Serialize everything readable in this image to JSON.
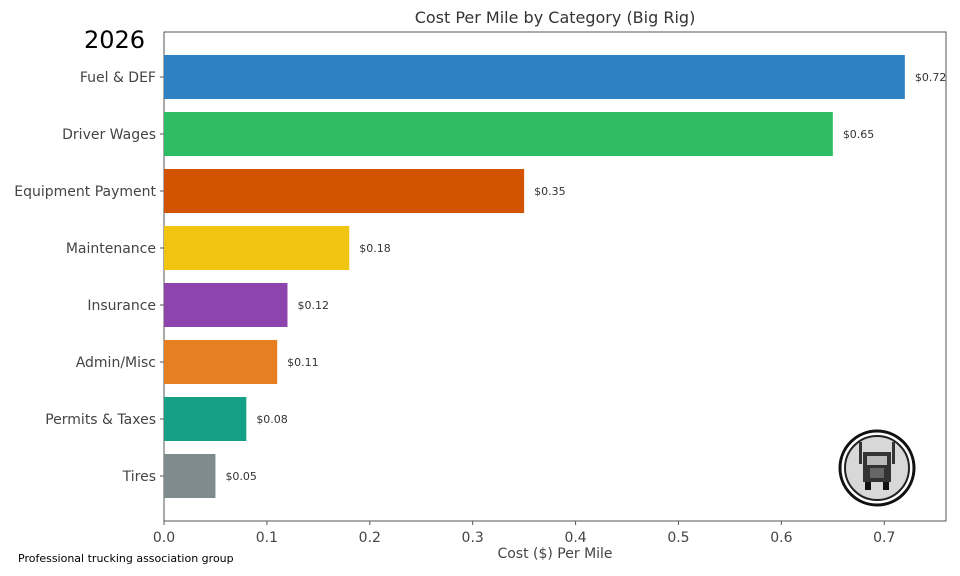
{
  "year_label": "2026",
  "footer": "Professional trucking association group",
  "logo": {
    "name": "truck-seal-logo"
  },
  "chart_data": {
    "type": "bar",
    "orientation": "horizontal",
    "title": "Cost Per Mile by Category (Big Rig)",
    "xlabel": "Cost ($) Per Mile",
    "ylabel": "",
    "xlim": [
      0,
      0.76
    ],
    "xticks": [
      "0.0",
      "0.1",
      "0.2",
      "0.3",
      "0.4",
      "0.5",
      "0.6",
      "0.7"
    ],
    "grid": false,
    "categories": [
      "Fuel & DEF",
      "Driver Wages",
      "Equipment Payment",
      "Maintenance",
      "Insurance",
      "Admin/Misc",
      "Permits & Taxes",
      "Tires"
    ],
    "values": [
      0.72,
      0.65,
      0.35,
      0.18,
      0.12,
      0.11,
      0.08,
      0.05
    ],
    "labels": [
      "$0.72",
      "$0.65",
      "$0.35",
      "$0.18",
      "$0.12",
      "$0.11",
      "$0.08",
      "$0.05"
    ],
    "colors": [
      "#2e82c4",
      "#2ebd62",
      "#d35400",
      "#f1c40f",
      "#8e44ad",
      "#e67e22",
      "#16a085",
      "#7f8c8d"
    ]
  }
}
